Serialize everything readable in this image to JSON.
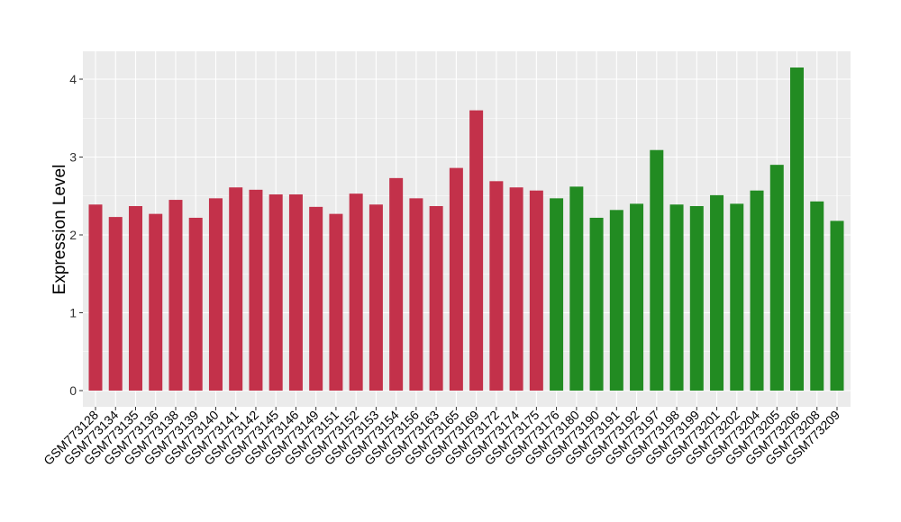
{
  "chart_data": {
    "type": "bar",
    "title": "",
    "xlabel": "",
    "ylabel": "Expression Level",
    "ylim": [
      -0.2,
      4.3
    ],
    "yticks": [
      0,
      1,
      2,
      3,
      4
    ],
    "grid": true,
    "categories": [
      "GSM773128",
      "GSM773134",
      "GSM773135",
      "GSM773136",
      "GSM773138",
      "GSM773139",
      "GSM773140",
      "GSM773141",
      "GSM773142",
      "GSM773145",
      "GSM773146",
      "GSM773149",
      "GSM773151",
      "GSM773152",
      "GSM773153",
      "GSM773154",
      "GSM773156",
      "GSM773163",
      "GSM773165",
      "GSM773169",
      "GSM773172",
      "GSM773174",
      "GSM773175",
      "GSM773176",
      "GSM773180",
      "GSM773190",
      "GSM773191",
      "GSM773192",
      "GSM773197",
      "GSM773198",
      "GSM773199",
      "GSM773201",
      "GSM773202",
      "GSM773204",
      "GSM773205",
      "GSM773206",
      "GSM773208",
      "GSM773209"
    ],
    "values": [
      2.39,
      2.23,
      2.37,
      2.27,
      2.45,
      2.22,
      2.47,
      2.61,
      2.58,
      2.52,
      2.52,
      2.36,
      2.27,
      2.53,
      2.39,
      2.73,
      2.47,
      2.37,
      2.86,
      3.6,
      2.69,
      2.61,
      2.57,
      2.47,
      2.62,
      2.22,
      2.32,
      2.4,
      3.09,
      2.39,
      2.37,
      2.51,
      2.4,
      2.57,
      2.9,
      4.15,
      2.43,
      2.18
    ],
    "groups": [
      "red",
      "red",
      "red",
      "red",
      "red",
      "red",
      "red",
      "red",
      "red",
      "red",
      "red",
      "red",
      "red",
      "red",
      "red",
      "red",
      "red",
      "red",
      "red",
      "red",
      "red",
      "red",
      "red",
      "green",
      "green",
      "green",
      "green",
      "green",
      "green",
      "green",
      "green",
      "green",
      "green",
      "green",
      "green",
      "green",
      "green",
      "green"
    ],
    "colors": {
      "red": "#c3314a",
      "green": "#228b22",
      "panel": "#ebebeb",
      "grid": "#ffffff"
    }
  }
}
